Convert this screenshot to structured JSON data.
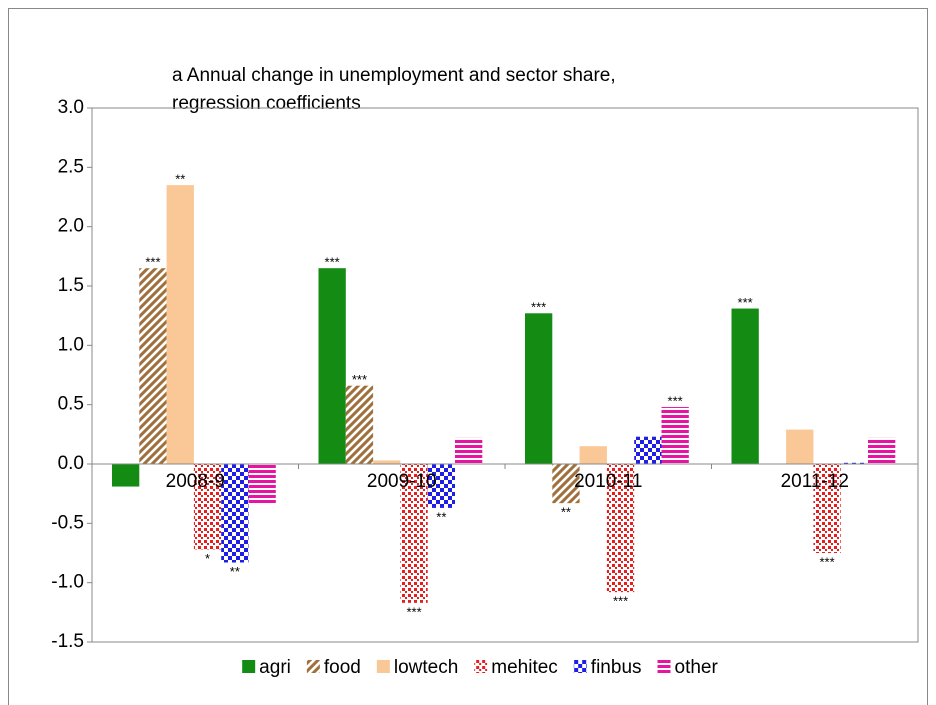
{
  "chart_data": {
    "type": "bar",
    "title": [
      "a Annual change in unemployment and sector share,",
      "regression coefficients"
    ],
    "categories": [
      "2008-9",
      "2009-10",
      "2010-11",
      "2011-12"
    ],
    "ylim": [
      -1.5,
      3.0
    ],
    "yticks": [
      {
        "value": -1.5,
        "label": "-1.5"
      },
      {
        "value": -1,
        "label": "-1.0"
      },
      {
        "value": -0.5,
        "label": "-0.5"
      },
      {
        "value": 0,
        "label": "0.0"
      },
      {
        "value": 0.5,
        "label": "0.5"
      },
      {
        "value": 1,
        "label": "1.0"
      },
      {
        "value": 1.5,
        "label": "1.5"
      },
      {
        "value": 2,
        "label": "2.0"
      },
      {
        "value": 2.5,
        "label": "2.5"
      },
      {
        "value": 3,
        "label": "3.0"
      }
    ],
    "grid": false,
    "legend": "bottom",
    "series": [
      {
        "name": "agri",
        "color": "#148c14",
        "pattern": "solid",
        "values": [
          -0.19,
          1.65,
          1.27,
          1.31
        ],
        "significance": [
          null,
          "***",
          "***",
          "***"
        ]
      },
      {
        "name": "food",
        "color": "#a0703c",
        "pattern": "diagonal",
        "values": [
          1.65,
          0.66,
          -0.33,
          0.0
        ],
        "significance": [
          "***",
          "***",
          "**",
          null
        ]
      },
      {
        "name": "lowtech",
        "color": "#fac896",
        "pattern": "solid",
        "values": [
          2.35,
          0.03,
          0.15,
          0.29
        ],
        "significance": [
          "**",
          null,
          null,
          null
        ]
      },
      {
        "name": "mehitec",
        "color": "#e61e1e",
        "pattern": "dots",
        "values": [
          -0.72,
          -1.17,
          -1.08,
          -0.75
        ],
        "significance": [
          "*",
          "***",
          "***",
          "***"
        ]
      },
      {
        "name": "finbus",
        "color": "#1e1ee6",
        "pattern": "checker",
        "values": [
          -0.83,
          -0.37,
          0.23,
          0.01
        ],
        "significance": [
          "**",
          "**",
          null,
          null
        ]
      },
      {
        "name": "other",
        "color": "#e614a0",
        "pattern": "hstripes",
        "values": [
          -0.33,
          0.22,
          0.48,
          0.22
        ],
        "significance": [
          null,
          null,
          "***",
          null
        ]
      }
    ]
  }
}
